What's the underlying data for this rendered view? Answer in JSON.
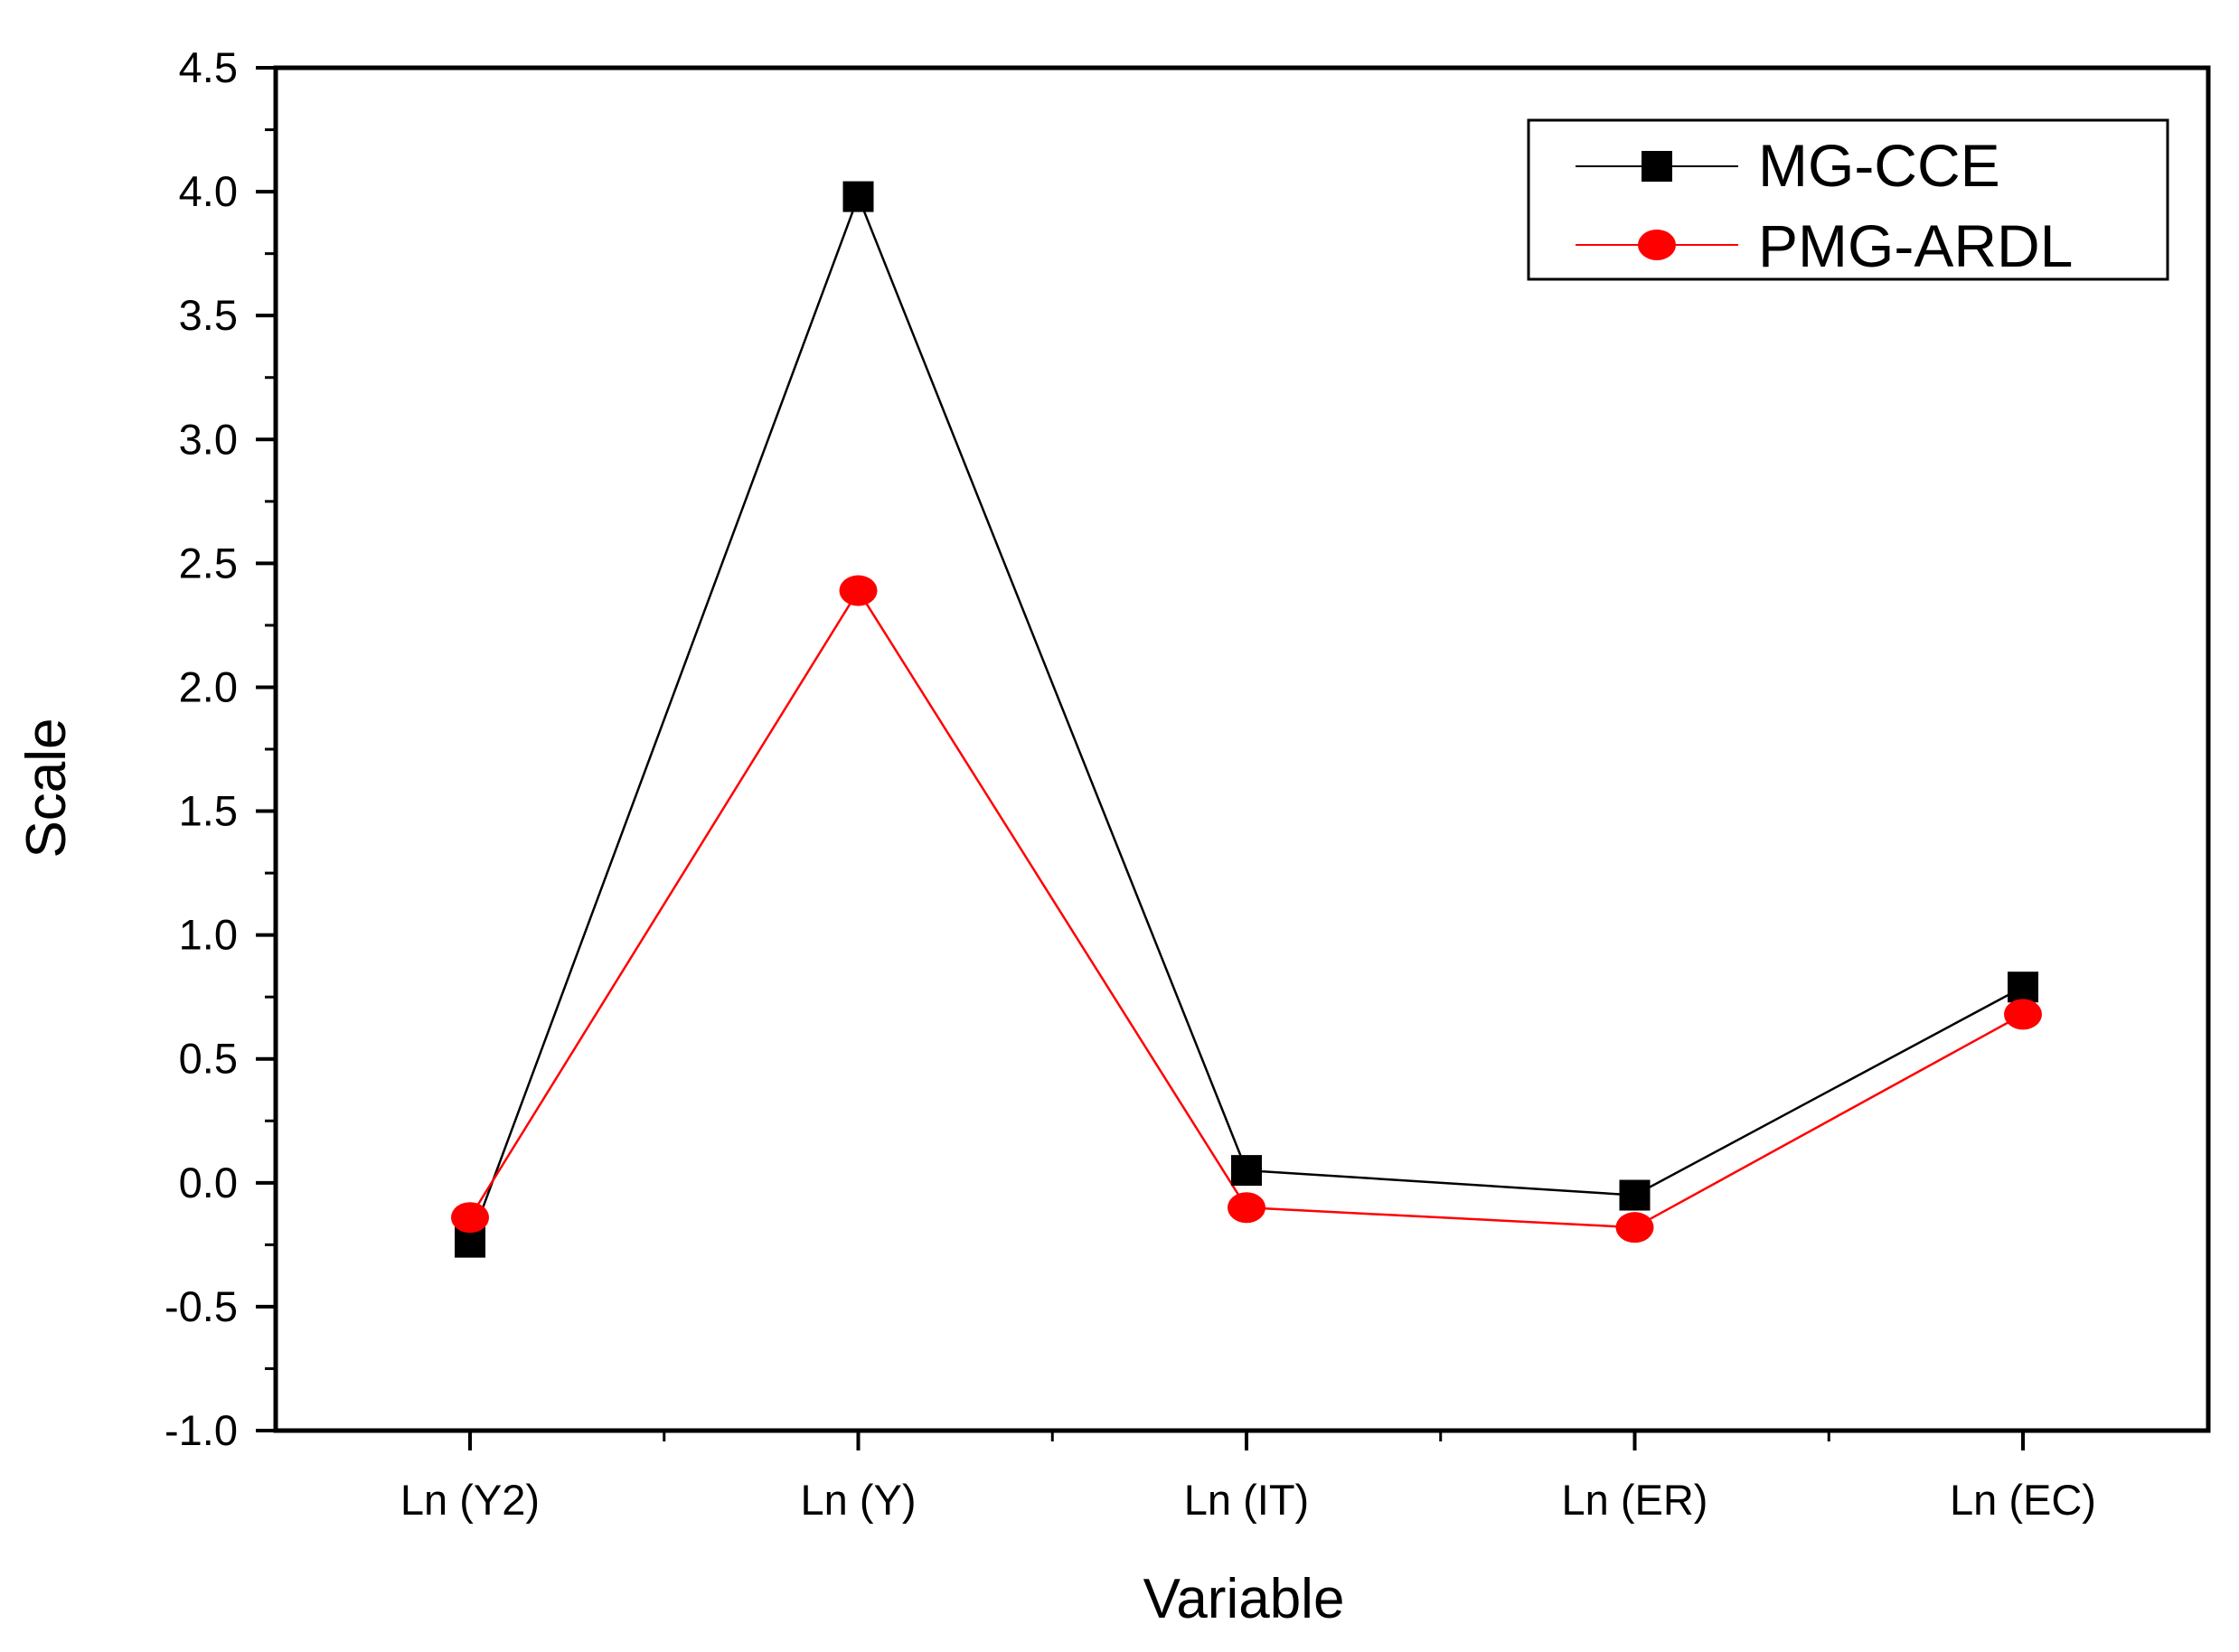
{
  "chart_data": {
    "type": "line",
    "title": "",
    "xlabel": "Variable",
    "ylabel": "Scale",
    "categories": [
      "Ln (Y2)",
      "Ln (Y)",
      "Ln (IT)",
      "Ln (ER)",
      "Ln (EC)"
    ],
    "ylim": [
      -1.0,
      4.5
    ],
    "yticks": [
      "-1.0",
      "-0.5",
      "0.0",
      "0.5",
      "1.0",
      "1.5",
      "2.0",
      "2.5",
      "3.0",
      "3.5",
      "4.0",
      "4.5"
    ],
    "legend_position": "top-right",
    "series": [
      {
        "name": "MG-CCE",
        "marker": "square",
        "color": "#000000",
        "values": [
          -0.24,
          3.98,
          0.05,
          -0.05,
          0.79
        ]
      },
      {
        "name": "PMG-ARDL",
        "marker": "circle",
        "color": "#ff0000",
        "values": [
          -0.14,
          2.39,
          -0.1,
          -0.18,
          0.68
        ]
      }
    ]
  }
}
